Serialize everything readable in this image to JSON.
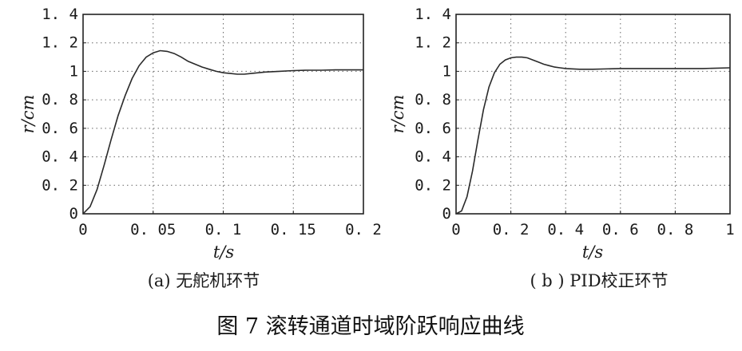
{
  "figure_title": "图 7  滚转通道时域阶跃响应曲线",
  "chart_data": [
    {
      "type": "line",
      "caption": "(a) 无舵机环节",
      "xlabel": "t/s",
      "ylabel": "r/cm",
      "xlim": [
        0,
        0.2
      ],
      "ylim": [
        0,
        1.4
      ],
      "xticks": [
        0,
        0.05,
        0.1,
        0.15,
        0.2
      ],
      "xtick_labels": [
        "0",
        "0. 05",
        "0. 1",
        "0. 15",
        "0. 2"
      ],
      "yticks": [
        0,
        0.2,
        0.4,
        0.6,
        0.8,
        1,
        1.2,
        1.4
      ],
      "ytick_labels": [
        "0",
        "0. 2",
        "0. 4",
        "0. 6",
        "0. 8",
        "1",
        "1. 2",
        "1. 4"
      ],
      "grid": true,
      "series": [
        {
          "x": [
            0,
            0.005,
            0.01,
            0.015,
            0.02,
            0.025,
            0.03,
            0.035,
            0.04,
            0.045,
            0.05,
            0.055,
            0.06,
            0.065,
            0.07,
            0.075,
            0.08,
            0.085,
            0.09,
            0.095,
            0.1,
            0.105,
            0.11,
            0.115,
            0.12,
            0.125,
            0.13,
            0.14,
            0.15,
            0.16,
            0.17,
            0.18,
            0.19,
            0.2
          ],
          "y": [
            0,
            0.05,
            0.17,
            0.34,
            0.52,
            0.69,
            0.83,
            0.95,
            1.04,
            1.1,
            1.13,
            1.145,
            1.14,
            1.125,
            1.1,
            1.07,
            1.05,
            1.03,
            1.015,
            1.0,
            0.99,
            0.985,
            0.98,
            0.98,
            0.985,
            0.99,
            0.995,
            1.0,
            1.005,
            1.008,
            1.008,
            1.01,
            1.01,
            1.01
          ]
        }
      ]
    },
    {
      "type": "line",
      "caption": "( b ) PID校正环节",
      "xlabel": "t/s",
      "ylabel": "r/cm",
      "xlim": [
        0,
        1
      ],
      "ylim": [
        0,
        1.4
      ],
      "xticks": [
        0,
        0.2,
        0.4,
        0.6,
        0.8,
        1
      ],
      "xtick_labels": [
        "0",
        "0. 2",
        "0. 4",
        "0. 6",
        "0. 8",
        "1"
      ],
      "yticks": [
        0,
        0.2,
        0.4,
        0.6,
        0.8,
        1,
        1.2,
        1.4
      ],
      "ytick_labels": [
        "0",
        "0. 2",
        "0. 4",
        "0. 6",
        "0. 8",
        "1",
        "1. 2",
        "1. 4"
      ],
      "grid": true,
      "series": [
        {
          "x": [
            0,
            0.02,
            0.04,
            0.06,
            0.08,
            0.1,
            0.12,
            0.14,
            0.16,
            0.18,
            0.2,
            0.22,
            0.24,
            0.26,
            0.28,
            0.3,
            0.32,
            0.34,
            0.36,
            0.38,
            0.4,
            0.45,
            0.5,
            0.6,
            0.7,
            0.8,
            0.9,
            1.0
          ],
          "y": [
            0,
            0.02,
            0.12,
            0.3,
            0.52,
            0.73,
            0.89,
            0.99,
            1.05,
            1.08,
            1.095,
            1.1,
            1.1,
            1.095,
            1.08,
            1.065,
            1.05,
            1.04,
            1.03,
            1.025,
            1.02,
            1.015,
            1.015,
            1.02,
            1.02,
            1.02,
            1.02,
            1.025
          ]
        }
      ]
    }
  ]
}
